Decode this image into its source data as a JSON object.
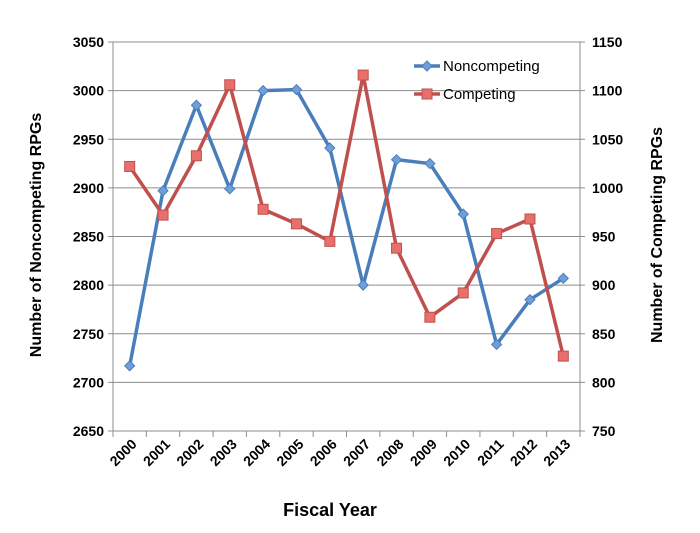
{
  "chart_data": {
    "type": "line",
    "title": "",
    "xlabel": "Fiscal Year",
    "ylabel_left": "Number of Noncompeting RPGs",
    "ylabel_right": "Number of  Competing RPGs",
    "x": [
      "2000",
      "2001",
      "2002",
      "2003",
      "2004",
      "2005",
      "2006",
      "2007",
      "2008",
      "2009",
      "2010",
      "2011",
      "2012",
      "2013"
    ],
    "y_left": {
      "min": 2650,
      "max": 3050,
      "ticks": [
        2650,
        2700,
        2750,
        2800,
        2850,
        2900,
        2950,
        3000,
        3050
      ]
    },
    "y_right": {
      "min": 750,
      "max": 1150,
      "ticks": [
        750,
        800,
        850,
        900,
        950,
        1000,
        1050,
        1100,
        1150
      ]
    },
    "grid": true,
    "legend_position": "top-right",
    "series": [
      {
        "name": "Noncompeting",
        "axis": "left",
        "color": "#4a7ebb",
        "marker_color": "#6f9fd8",
        "marker": "diamond",
        "values": [
          2717,
          2897,
          2985,
          2899,
          3000,
          3001,
          2941,
          2800,
          2929,
          2925,
          2873,
          2739,
          2785,
          2807
        ]
      },
      {
        "name": "Competing",
        "axis": "right",
        "color": "#c0504d",
        "marker_color": "#e8706c",
        "marker": "square",
        "values": [
          1022,
          972,
          1033,
          1106,
          978,
          963,
          945,
          1116,
          938,
          867,
          892,
          953,
          968,
          827
        ]
      }
    ]
  }
}
